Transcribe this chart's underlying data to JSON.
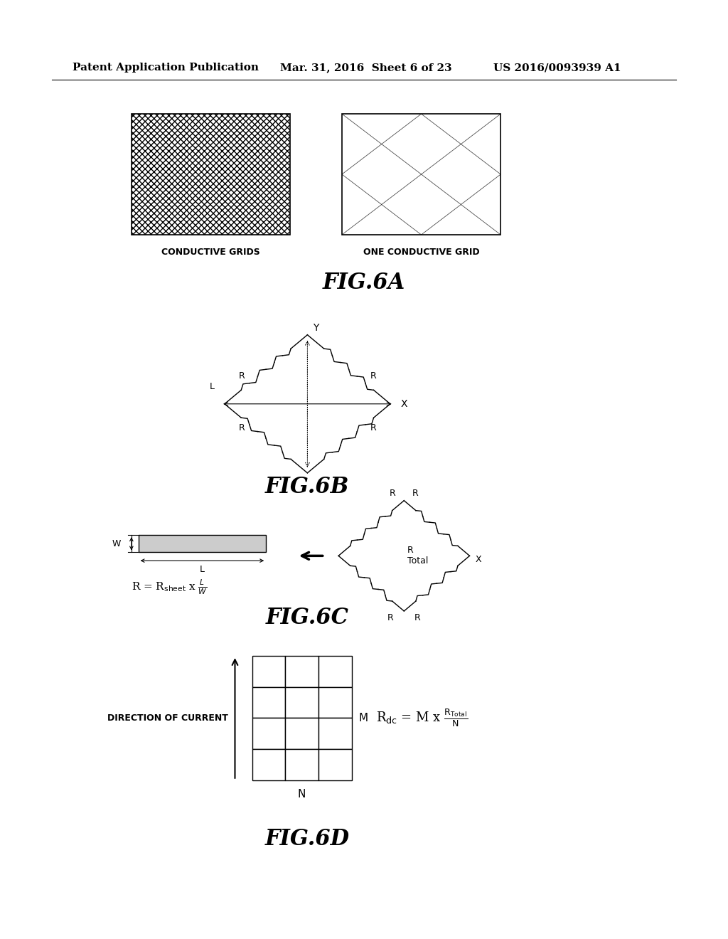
{
  "bg_color": "#ffffff",
  "header_text1": "Patent Application Publication",
  "header_text2": "Mar. 31, 2016  Sheet 6 of 23",
  "header_text3": "US 2016/0093939 A1",
  "fig6a_label": "FIG.6A",
  "fig6b_label": "FIG.6B",
  "fig6c_label": "FIG.6C",
  "fig6d_label": "FIG.6D",
  "label_conductive_grids": "CONDUCTIVE GRIDS",
  "label_one_conductive_grid": "ONE CONDUCTIVE GRID",
  "label_direction_of_current": "DIRECTION OF CURRENT",
  "label_M": "M",
  "label_N": "N",
  "label_R_total": "R\nTotal",
  "label_X_6b": "X",
  "formula_6b": "R = R_sheet x L/W",
  "formula_6d": "R_dc = M x R_Total/N"
}
